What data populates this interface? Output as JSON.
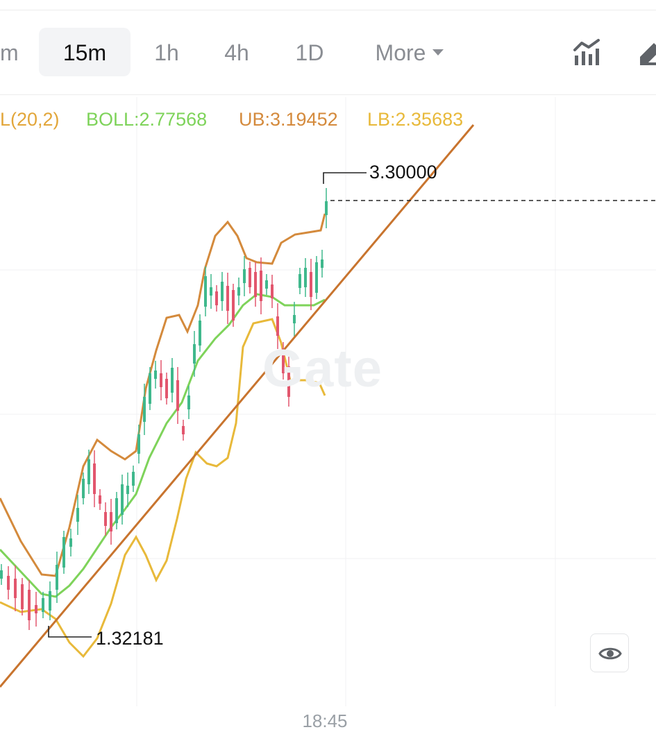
{
  "toolbar": {
    "timeframes": [
      {
        "label": "m",
        "active": false
      },
      {
        "label": "15m",
        "active": true
      },
      {
        "label": "1h",
        "active": false
      },
      {
        "label": "4h",
        "active": false
      },
      {
        "label": "1D",
        "active": false
      }
    ],
    "more_label": "More",
    "icons": [
      "indicator-chart-icon",
      "drawing-tool-icon"
    ]
  },
  "indicator_legend": {
    "params": "L(20,2)",
    "boll": "BOLL:2.77568",
    "ub": "UB:3.19452",
    "lb": "LB:2.35683",
    "colors": {
      "params": "#e2a63a",
      "boll": "#7ed35a",
      "ub": "#d48a3c",
      "lb": "#e8b93a"
    }
  },
  "watermark": "Gate",
  "x_axis": {
    "time_label": "18:45"
  },
  "colors": {
    "up": "#3fb88c",
    "down": "#e2566d",
    "upper_band": "#d48a3c",
    "middle_band": "#7ed35a",
    "lower_band": "#e8b93a",
    "trendline": "#c8742e",
    "grid": "#f0f1f3"
  },
  "chart_data": {
    "type": "candlestick",
    "interval": "15m",
    "indicator": "BOLL(20,2)",
    "price_scale": "linear",
    "high_marker": 3.3,
    "low_marker": 1.32181,
    "current_price_line": "dashed",
    "series": [
      {
        "name": "BOLL",
        "last": 2.77568
      },
      {
        "name": "UB",
        "last": 3.19452
      },
      {
        "name": "LB",
        "last": 2.35683
      }
    ],
    "high_label": "3.30000",
    "low_label": "1.32181",
    "trendline": "rising support line drawn from the low through recent lows",
    "grid": true
  },
  "eye_button": {
    "icon": "eye-icon"
  }
}
